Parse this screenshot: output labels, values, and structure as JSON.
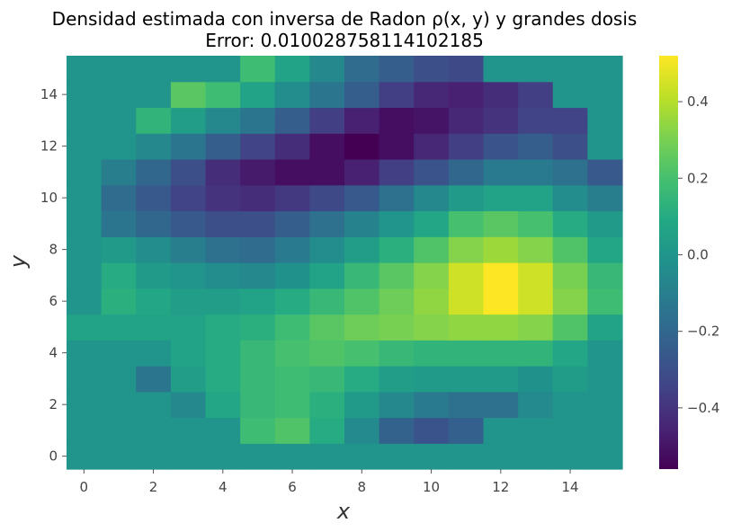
{
  "chart_data": {
    "type": "heatmap",
    "title_line1": "Densidad estimada con inversa de Radon ρ(x, y) y grandes dosis",
    "title_line2": "Error: 0.010028758114102185",
    "xlabel": "x",
    "ylabel": "y",
    "x": [
      0,
      1,
      2,
      3,
      4,
      5,
      6,
      7,
      8,
      9,
      10,
      11,
      12,
      13,
      14,
      15
    ],
    "y": [
      0,
      1,
      2,
      3,
      4,
      5,
      6,
      7,
      8,
      9,
      10,
      11,
      12,
      13,
      14,
      15
    ],
    "xlim": [
      -0.5,
      15.5
    ],
    "ylim": [
      -0.5,
      15.5
    ],
    "x_ticks": [
      0,
      2,
      4,
      6,
      8,
      10,
      12,
      14
    ],
    "y_ticks": [
      0,
      2,
      4,
      6,
      8,
      10,
      12,
      14
    ],
    "colormap": "viridis",
    "colorbar": {
      "vmin": -0.56,
      "vmax": 0.52,
      "ticks": [
        0.4,
        0.2,
        0.0,
        -0.2,
        -0.4
      ],
      "tick_labels": [
        "0.4",
        "0.2",
        "0.0",
        "−0.2",
        "−0.4"
      ]
    },
    "grid": false,
    "z": [
      [
        0.0,
        0.0,
        0.0,
        0.0,
        0.0,
        0.0,
        0.0,
        0.0,
        0.0,
        0.0,
        0.0,
        0.0,
        0.0,
        0.0,
        0.0,
        0.0
      ],
      [
        0.0,
        0.0,
        0.0,
        0.0,
        0.0,
        0.18,
        0.22,
        0.1,
        -0.05,
        -0.22,
        -0.28,
        -0.23,
        0.0,
        0.0,
        0.0,
        0.0
      ],
      [
        0.0,
        0.0,
        0.0,
        -0.06,
        0.08,
        0.16,
        0.18,
        0.12,
        0.02,
        -0.06,
        -0.12,
        -0.16,
        -0.16,
        -0.05,
        0.0,
        0.0
      ],
      [
        0.0,
        0.0,
        -0.14,
        0.04,
        0.1,
        0.16,
        0.18,
        0.16,
        0.1,
        0.04,
        0.02,
        0.02,
        0.02,
        -0.02,
        0.03,
        0.0
      ],
      [
        0.0,
        0.0,
        0.0,
        0.06,
        0.1,
        0.16,
        0.2,
        0.22,
        0.2,
        0.16,
        0.14,
        0.14,
        0.14,
        0.14,
        0.08,
        0.0
      ],
      [
        0.06,
        0.06,
        0.06,
        0.06,
        0.1,
        0.12,
        0.18,
        0.24,
        0.28,
        0.3,
        0.32,
        0.34,
        0.34,
        0.32,
        0.22,
        0.06
      ],
      [
        0.0,
        0.12,
        0.08,
        0.04,
        0.04,
        0.06,
        0.1,
        0.16,
        0.22,
        0.28,
        0.34,
        0.44,
        0.52,
        0.44,
        0.32,
        0.18
      ],
      [
        0.0,
        0.1,
        0.02,
        0.0,
        -0.04,
        -0.06,
        -0.02,
        0.06,
        0.16,
        0.24,
        0.32,
        0.44,
        0.52,
        0.44,
        0.3,
        0.16
      ],
      [
        0.0,
        0.02,
        -0.04,
        -0.1,
        -0.16,
        -0.18,
        -0.12,
        -0.04,
        0.04,
        0.12,
        0.22,
        0.32,
        0.36,
        0.32,
        0.22,
        0.08
      ],
      [
        0.0,
        -0.14,
        -0.2,
        -0.26,
        -0.3,
        -0.3,
        -0.24,
        -0.16,
        -0.08,
        0.0,
        0.08,
        0.2,
        0.24,
        0.2,
        0.1,
        0.02
      ],
      [
        0.0,
        -0.18,
        -0.26,
        -0.34,
        -0.4,
        -0.42,
        -0.38,
        -0.32,
        -0.26,
        -0.16,
        -0.06,
        0.02,
        0.06,
        0.06,
        -0.04,
        -0.1
      ],
      [
        0.0,
        -0.1,
        -0.2,
        -0.3,
        -0.42,
        -0.48,
        -0.52,
        -0.52,
        -0.46,
        -0.36,
        -0.28,
        -0.2,
        -0.12,
        -0.12,
        -0.16,
        -0.26
      ],
      [
        0.0,
        0.0,
        -0.06,
        -0.14,
        -0.24,
        -0.34,
        -0.42,
        -0.52,
        -0.56,
        -0.52,
        -0.44,
        -0.36,
        -0.28,
        -0.24,
        -0.3,
        0.0
      ],
      [
        0.0,
        0.0,
        0.14,
        0.04,
        -0.06,
        -0.14,
        -0.24,
        -0.36,
        -0.46,
        -0.52,
        -0.5,
        -0.44,
        -0.4,
        -0.34,
        -0.34,
        0.0
      ],
      [
        0.0,
        0.0,
        0.0,
        0.24,
        0.18,
        0.06,
        -0.04,
        -0.14,
        -0.24,
        -0.36,
        -0.44,
        -0.46,
        -0.42,
        -0.36,
        0.0,
        0.0
      ],
      [
        0.0,
        0.0,
        0.0,
        0.0,
        0.0,
        0.18,
        0.06,
        -0.06,
        -0.18,
        -0.24,
        -0.3,
        -0.32,
        0.0,
        0.0,
        0.0,
        0.0
      ]
    ]
  }
}
